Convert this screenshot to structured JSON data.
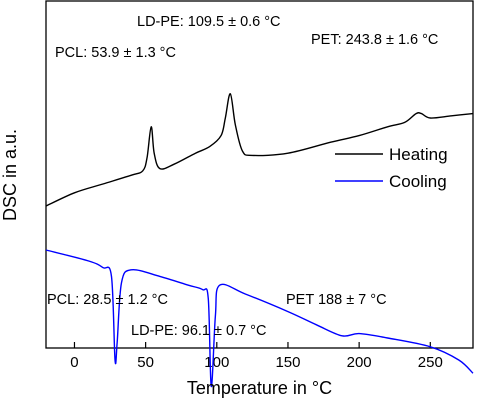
{
  "chart_data": {
    "type": "line",
    "xlabel": "Temperature in °C",
    "ylabel": "DSC in a.u.",
    "xlim": [
      -20,
      280
    ],
    "x_ticks": [
      0,
      50,
      100,
      150,
      200,
      250
    ],
    "y_ticks_visible": false,
    "grid": false,
    "legend_position": "center-right",
    "series": [
      {
        "name": "Heating",
        "color": "#000000",
        "points": [
          [
            -20,
            0.2
          ],
          [
            0,
            0.26
          ],
          [
            20,
            0.3
          ],
          [
            40,
            0.34
          ],
          [
            48,
            0.36
          ],
          [
            51,
            0.42
          ],
          [
            53.9,
            0.56
          ],
          [
            56,
            0.44
          ],
          [
            60,
            0.37
          ],
          [
            70,
            0.39
          ],
          [
            85,
            0.44
          ],
          [
            95,
            0.47
          ],
          [
            103,
            0.52
          ],
          [
            106,
            0.6
          ],
          [
            109.5,
            0.71
          ],
          [
            113,
            0.57
          ],
          [
            118,
            0.45
          ],
          [
            125,
            0.43
          ],
          [
            150,
            0.44
          ],
          [
            180,
            0.49
          ],
          [
            200,
            0.52
          ],
          [
            220,
            0.56
          ],
          [
            232,
            0.58
          ],
          [
            240,
            0.62
          ],
          [
            243.8,
            0.62
          ],
          [
            250,
            0.6
          ],
          [
            265,
            0.61
          ],
          [
            280,
            0.62
          ]
        ]
      },
      {
        "name": "Cooling",
        "color": "#0000ff",
        "points": [
          [
            -20,
            0.0
          ],
          [
            10,
            -0.05
          ],
          [
            20,
            -0.08
          ],
          [
            26,
            -0.12
          ],
          [
            28.5,
            -0.5
          ],
          [
            30,
            -0.42
          ],
          [
            33,
            -0.15
          ],
          [
            40,
            -0.09
          ],
          [
            60,
            -0.12
          ],
          [
            80,
            -0.16
          ],
          [
            90,
            -0.18
          ],
          [
            94,
            -0.22
          ],
          [
            96.1,
            -0.62
          ],
          [
            99,
            -0.3
          ],
          [
            102,
            -0.16
          ],
          [
            120,
            -0.2
          ],
          [
            150,
            -0.28
          ],
          [
            170,
            -0.34
          ],
          [
            188,
            -0.39
          ],
          [
            200,
            -0.38
          ],
          [
            220,
            -0.4
          ],
          [
            250,
            -0.44
          ],
          [
            270,
            -0.5
          ],
          [
            280,
            -0.56
          ]
        ]
      }
    ],
    "annotations": [
      {
        "text": "PCL: 53.9 ± 1.3 °C",
        "series": "Heating"
      },
      {
        "text": "LD-PE: 109.5 ± 0.6 °C",
        "series": "Heating"
      },
      {
        "text": "PET: 243.8 ± 1.6 °C",
        "series": "Heating"
      },
      {
        "text": "PCL: 28.5 ± 1.2 °C",
        "series": "Cooling"
      },
      {
        "text": "LD-PE: 96.1 ± 0.7 °C",
        "series": "Cooling"
      },
      {
        "text": "PET 188 ± 7 °C",
        "series": "Cooling"
      }
    ],
    "legend": [
      {
        "label": "Heating",
        "color": "#000000"
      },
      {
        "label": "Cooling",
        "color": "#0000ff"
      }
    ]
  }
}
